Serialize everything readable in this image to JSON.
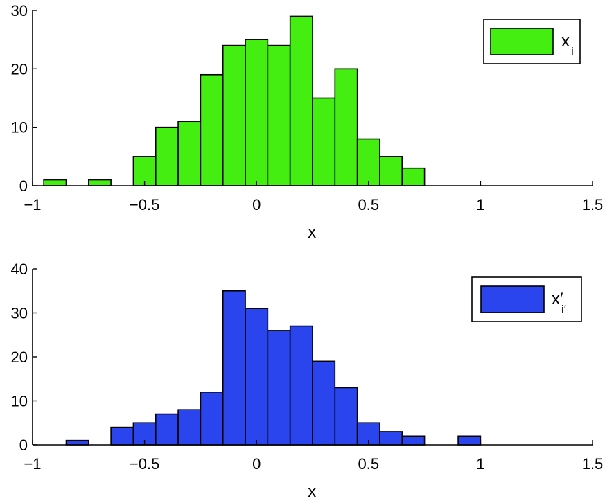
{
  "chart_data": [
    {
      "type": "bar",
      "subtype": "histogram",
      "xlabel": "x",
      "ylabel": "",
      "xlim": [
        -1,
        1.5
      ],
      "ylim": [
        0,
        30
      ],
      "xticks": [
        -1,
        -0.5,
        0,
        0.5,
        1,
        1.5
      ],
      "xtick_labels": [
        "−1",
        "−0.5",
        "0",
        "0.5",
        "1",
        "1.5"
      ],
      "yticks": [
        0,
        10,
        20,
        30
      ],
      "ytick_labels": [
        "0",
        "10",
        "20",
        "30"
      ],
      "bin_width": 0.1,
      "bin_centers": [
        -0.9,
        -0.7,
        -0.5,
        -0.4,
        -0.3,
        -0.2,
        -0.1,
        0.0,
        0.1,
        0.2,
        0.3,
        0.4,
        0.5,
        0.6,
        0.7
      ],
      "values": [
        1,
        1,
        5,
        10,
        11,
        19,
        24,
        25,
        24,
        29,
        15,
        20,
        8,
        5,
        3
      ],
      "color": "#44ee11",
      "legend": {
        "position": "top-right",
        "label": "x",
        "label_sub": "i"
      },
      "grid": false
    },
    {
      "type": "bar",
      "subtype": "histogram",
      "xlabel": "x",
      "ylabel": "",
      "xlim": [
        -1,
        1.5
      ],
      "ylim": [
        0,
        40
      ],
      "xticks": [
        -1,
        -0.5,
        0,
        0.5,
        1,
        1.5
      ],
      "xtick_labels": [
        "−1",
        "−0.5",
        "0",
        "0.5",
        "1",
        "1.5"
      ],
      "yticks": [
        0,
        10,
        20,
        30,
        40
      ],
      "ytick_labels": [
        "0",
        "10",
        "20",
        "30",
        "40"
      ],
      "bin_width": 0.1,
      "bin_centers": [
        -0.8,
        -0.6,
        -0.5,
        -0.4,
        -0.3,
        -0.2,
        -0.1,
        0.0,
        0.1,
        0.2,
        0.3,
        0.4,
        0.5,
        0.6,
        0.7,
        0.95
      ],
      "values": [
        1,
        4,
        5,
        7,
        8,
        12,
        35,
        31,
        26,
        27,
        19,
        13,
        5,
        3,
        2,
        2
      ],
      "color": "#2a44ee",
      "legend": {
        "position": "top-right",
        "label": "x′",
        "label_sub": "i′"
      },
      "grid": false
    }
  ]
}
